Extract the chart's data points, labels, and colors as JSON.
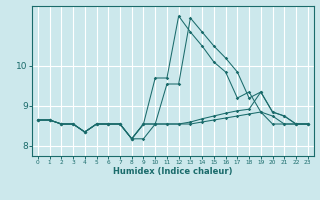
{
  "xlabel": "Humidex (Indice chaleur)",
  "bg_color": "#cce8ec",
  "grid_color": "#ffffff",
  "line_color": "#1a6b6b",
  "xlim": [
    -0.5,
    23.5
  ],
  "ylim": [
    7.75,
    11.5
  ],
  "xticks": [
    0,
    1,
    2,
    3,
    4,
    5,
    6,
    7,
    8,
    9,
    10,
    11,
    12,
    13,
    14,
    15,
    16,
    17,
    18,
    19,
    20,
    21,
    22,
    23
  ],
  "yticks": [
    8,
    9,
    10
  ],
  "curve1": [
    8.65,
    8.65,
    8.55,
    8.55,
    8.35,
    8.55,
    8.55,
    8.55,
    8.18,
    8.55,
    9.7,
    9.7,
    11.25,
    10.85,
    10.5,
    10.1,
    9.85,
    9.2,
    9.35,
    8.85,
    8.75,
    8.55,
    8.55,
    8.55
  ],
  "curve2": [
    8.65,
    8.65,
    8.55,
    8.55,
    8.35,
    8.55,
    8.55,
    8.55,
    8.18,
    8.55,
    8.55,
    9.55,
    9.55,
    11.2,
    10.85,
    10.5,
    10.2,
    9.85,
    9.2,
    9.35,
    8.85,
    8.75,
    8.55,
    8.55
  ],
  "curve3": [
    8.65,
    8.65,
    8.55,
    8.55,
    8.35,
    8.55,
    8.55,
    8.55,
    8.18,
    8.55,
    8.55,
    8.55,
    8.55,
    8.6,
    8.68,
    8.75,
    8.82,
    8.88,
    8.92,
    9.35,
    8.85,
    8.75,
    8.55,
    8.55
  ],
  "curve4": [
    8.65,
    8.65,
    8.55,
    8.55,
    8.35,
    8.55,
    8.55,
    8.55,
    8.18,
    8.18,
    8.55,
    8.55,
    8.55,
    8.55,
    8.6,
    8.65,
    8.7,
    8.75,
    8.8,
    8.85,
    8.55,
    8.55,
    8.55,
    8.55
  ]
}
